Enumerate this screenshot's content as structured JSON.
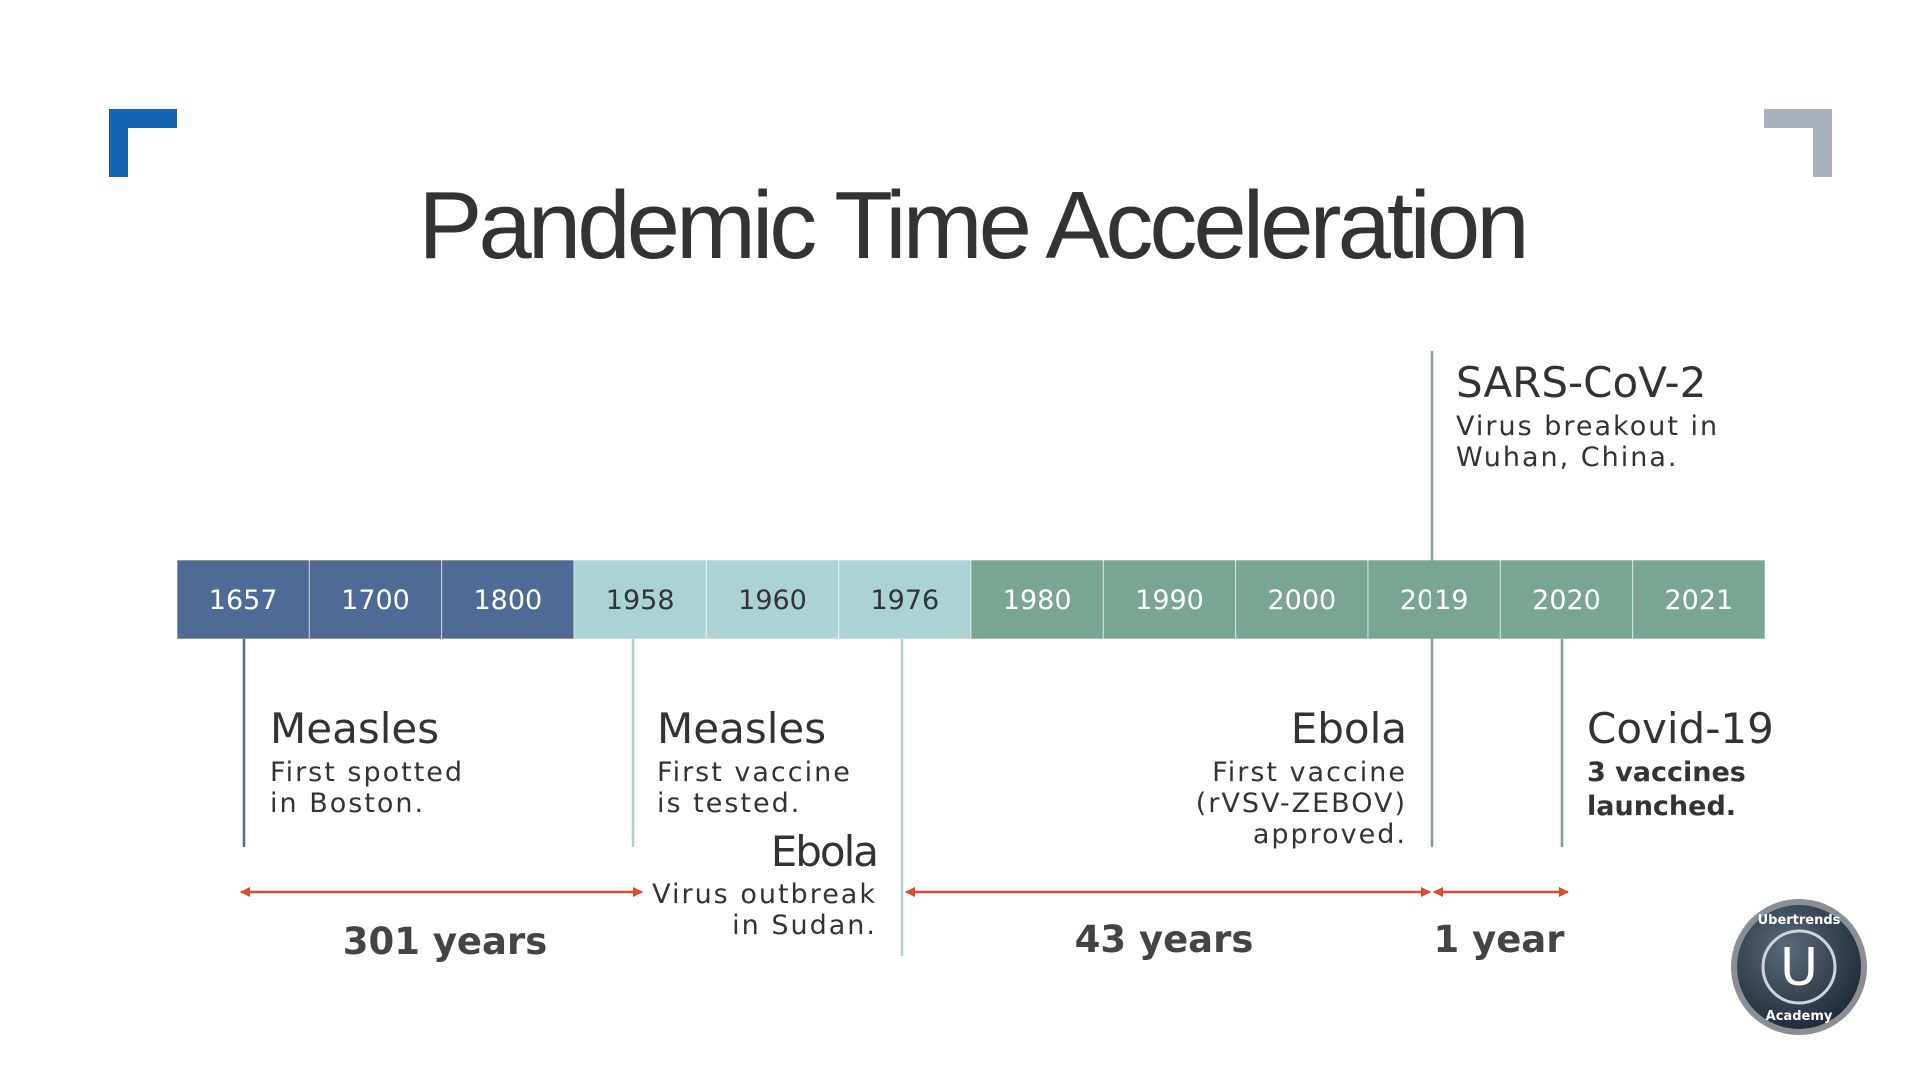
{
  "title": "Pandemic Time Acceleration",
  "timeline": {
    "years": [
      "1657",
      "1700",
      "1800",
      "1958",
      "1960",
      "1976",
      "1980",
      "1990",
      "2000",
      "2019",
      "2020",
      "2021"
    ]
  },
  "events": [
    {
      "name": "Measles",
      "lines": [
        "First spotted",
        "in Boston."
      ]
    },
    {
      "name": "Measles",
      "lines": [
        "First vaccine",
        "is tested."
      ]
    },
    {
      "name": "Ebola",
      "lines": [
        "Virus outbreak",
        "in Sudan."
      ]
    },
    {
      "name": "Ebola",
      "lines": [
        "First vaccine",
        "(rVSV-ZEBOV)",
        "approved."
      ]
    },
    {
      "name": "SARS-CoV-2",
      "lines": [
        "Virus breakout in",
        "Wuhan, China."
      ]
    },
    {
      "name": "Covid-19",
      "lines": [
        "3 vaccines",
        "launched."
      ]
    }
  ],
  "spans": [
    "301 years",
    "43 years",
    "1 year"
  ],
  "logo": {
    "top": "Ubertrends",
    "letter": "U",
    "bottom": "Academy"
  }
}
